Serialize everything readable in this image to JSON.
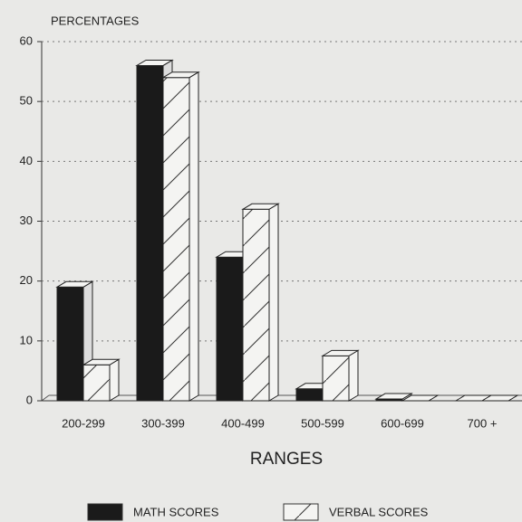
{
  "chart_data": {
    "type": "bar3d",
    "y_label": "PERCENTAGES",
    "x_label": "RANGES",
    "categories": [
      "200-299",
      "300-399",
      "400-499",
      "500-599",
      "600-699",
      "700 +"
    ],
    "series": [
      {
        "name": "MATH SCORES",
        "color": "#1a1a1a",
        "hatch": false,
        "values": [
          19,
          56,
          24,
          2,
          0.3,
          0
        ]
      },
      {
        "name": "VERBAL SCORES",
        "color": "#f4f4f2",
        "hatch": true,
        "values": [
          6,
          54,
          32,
          7.5,
          0,
          0
        ]
      }
    ],
    "ylim": [
      0,
      60
    ],
    "yticks": [
      0,
      10,
      20,
      30,
      40,
      50,
      60
    ],
    "grid": true
  }
}
